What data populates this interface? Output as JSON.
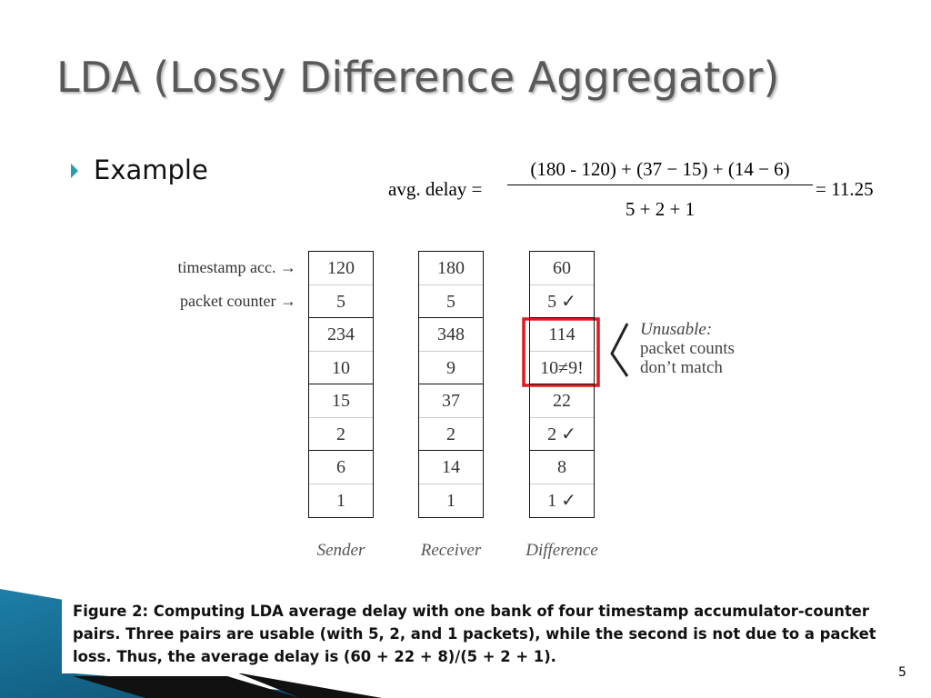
{
  "title": "LDA (Lossy Difference Aggregator)",
  "bullet": "Example",
  "formula": {
    "lhs": "avg. delay =",
    "numerator": "(180 - 120) + (37 − 15) + (14 − 6)",
    "denominator": "5 + 2 + 1",
    "result": "= 11.25"
  },
  "figure": {
    "row_labels": [
      "timestamp acc. →",
      "packet counter →"
    ],
    "columns": [
      {
        "label": "Sender",
        "cells": [
          "120",
          "5",
          "234",
          "10",
          "15",
          "2",
          "6",
          "1"
        ]
      },
      {
        "label": "Receiver",
        "cells": [
          "180",
          "5",
          "348",
          "9",
          "37",
          "2",
          "14",
          "1"
        ]
      },
      {
        "label": "Difference",
        "cells": [
          "60",
          "5 ✓",
          "114",
          "10≠9!",
          "22",
          "2 ✓",
          "8",
          "1 ✓"
        ]
      }
    ],
    "annotation": [
      "Unusable:",
      "packet counts",
      "don’t match"
    ]
  },
  "caption": "Figure 2: Computing LDA average delay with one bank of four timestamp accumulator-counter pairs. Three pairs are usable (with 5, 2, and 1 packets), while the second is not due to a packet loss. Thus, the average delay is (60 + 22 + 8)/(5 + 2 + 1).",
  "page_number": "5"
}
